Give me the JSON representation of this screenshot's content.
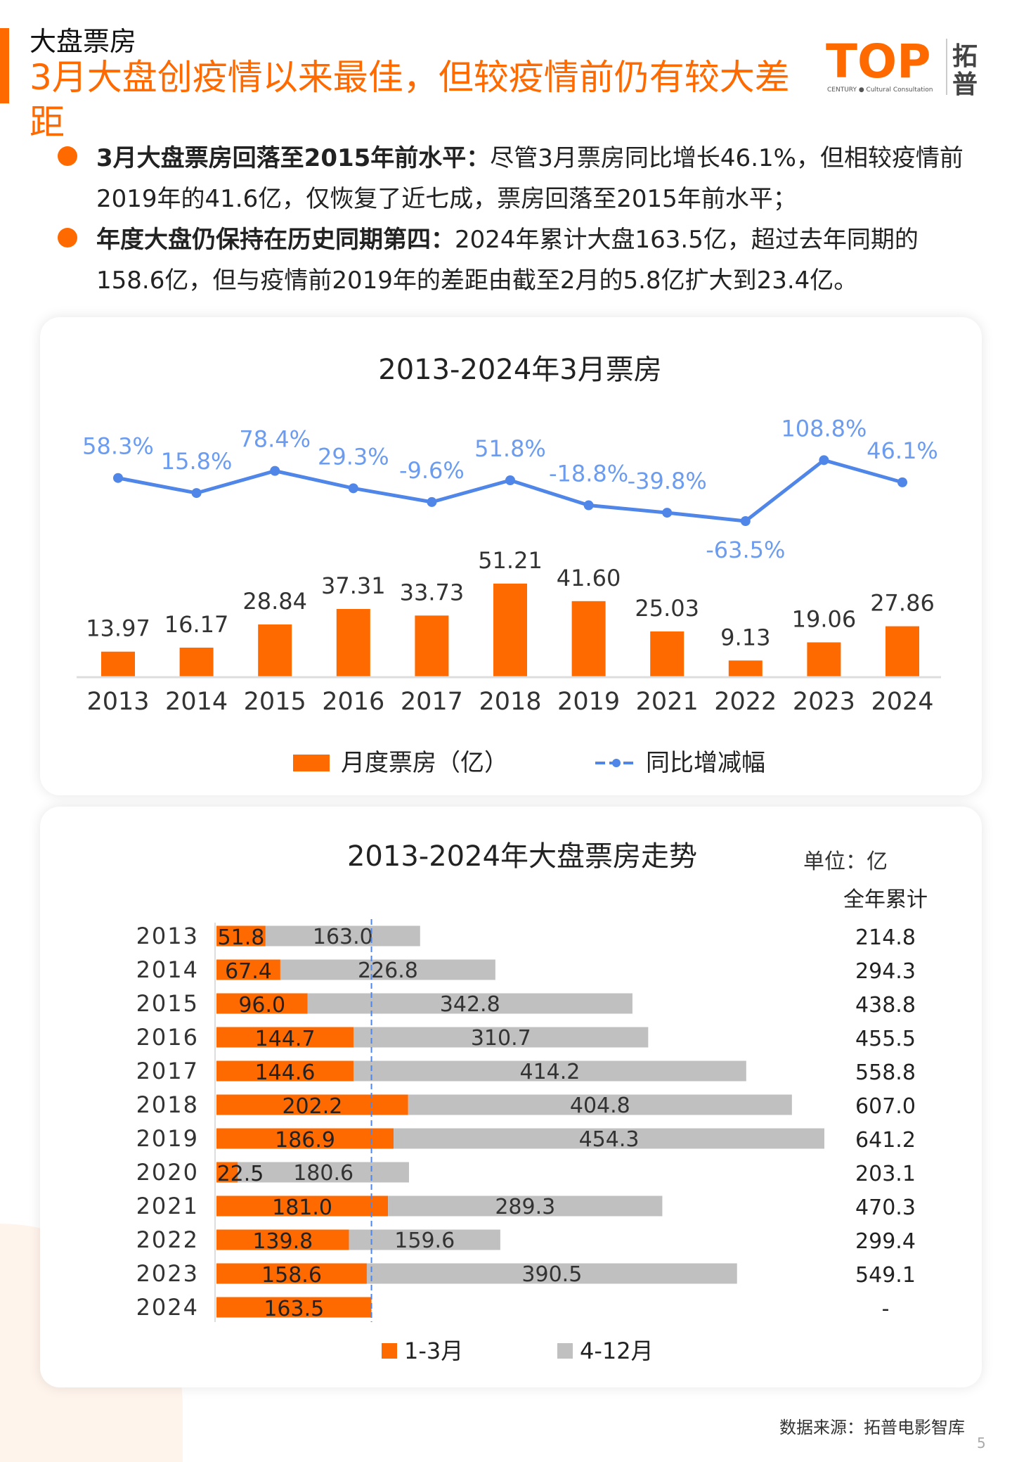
{
  "header": {
    "section": "大盘票房",
    "headline": "3月大盘创疫情以来最佳，但较疫情前仍有较大差距",
    "logo_text": "TOP",
    "logo_sub": "CENTURY ● Cultural Consultation",
    "logo_cn": "拓普"
  },
  "bullets": [
    {
      "bold": "3月大盘票房回落至2015年前水平：",
      "text": "尽管3月票房同比增长46.1%，但相较疫情前2019年的41.6亿，仅恢复了近七成，票房回落至2015年前水平；"
    },
    {
      "bold": "年度大盘仍保持在历史同期第四：",
      "text": "2024年累计大盘163.5亿，超过去年同期的158.6亿，但与疫情前2019年的差距由截至2月的5.8亿扩大到23.4亿。"
    }
  ],
  "colors": {
    "orange": "#ff6a00",
    "blue": "#4f86e8",
    "gray": "#c0c0c0"
  },
  "chart_data": [
    {
      "type": "bar+line",
      "title": "2013-2024年3月票房",
      "categories": [
        "2013",
        "2014",
        "2015",
        "2016",
        "2017",
        "2018",
        "2019",
        "2021",
        "2022",
        "2023",
        "2024"
      ],
      "series": [
        {
          "name": "月度票房（亿）",
          "type": "bar",
          "color": "#ff6a00",
          "values": [
            13.97,
            16.17,
            28.84,
            37.31,
            33.73,
            51.21,
            41.6,
            25.03,
            9.13,
            19.06,
            27.86
          ],
          "labels": [
            "13.97",
            "16.17",
            "28.84",
            "37.31",
            "33.73",
            "51.21",
            "41.60",
            "25.03",
            "9.13",
            "19.06",
            "27.86"
          ]
        },
        {
          "name": "同比增减幅",
          "type": "line",
          "color": "#4f86e8",
          "values": [
            58.3,
            15.8,
            78.4,
            29.3,
            -9.6,
            51.8,
            -18.8,
            -39.8,
            -63.5,
            108.8,
            46.1
          ],
          "labels": [
            "58.3%",
            "15.8%",
            "78.4%",
            "29.3%",
            "-9.6%",
            "51.8%",
            "-18.8%",
            "-39.8%",
            "-63.5%",
            "108.8%",
            "46.1%"
          ]
        }
      ],
      "legend": "bottom",
      "grid": false
    },
    {
      "type": "stacked-bar-horizontal",
      "title": "2013-2024年大盘票房走势",
      "unit": "单位：亿",
      "total_header": "全年累计",
      "categories": [
        "2013",
        "2014",
        "2015",
        "2016",
        "2017",
        "2018",
        "2019",
        "2020",
        "2021",
        "2022",
        "2023",
        "2024"
      ],
      "series": [
        {
          "name": "1-3月",
          "color": "#ff6a00",
          "values": [
            51.8,
            67.4,
            96.0,
            144.7,
            144.6,
            202.2,
            186.9,
            22.5,
            181.0,
            139.8,
            158.6,
            163.5
          ],
          "labels": [
            "51.8",
            "67.4",
            "96.0",
            "144.7",
            "144.6",
            "202.2",
            "186.9",
            "22.5",
            "181.0",
            "139.8",
            "158.6",
            "163.5"
          ]
        },
        {
          "name": "4-12月",
          "color": "#c0c0c0",
          "values": [
            163.0,
            226.8,
            342.8,
            310.7,
            414.2,
            404.8,
            454.3,
            180.6,
            289.3,
            159.6,
            390.5,
            null
          ],
          "labels": [
            "163.0",
            "226.8",
            "342.8",
            "310.7",
            "414.2",
            "404.8",
            "454.3",
            "180.6",
            "289.3",
            "159.6",
            "390.5",
            ""
          ]
        }
      ],
      "totals": [
        "214.8",
        "294.3",
        "438.8",
        "455.5",
        "558.8",
        "607.0",
        "641.2",
        "203.1",
        "470.3",
        "299.4",
        "549.1",
        "-"
      ],
      "reference_line": 163.5,
      "legend": "bottom"
    }
  ],
  "footer": {
    "source": "数据来源：拓普电影智库",
    "page": "5"
  }
}
